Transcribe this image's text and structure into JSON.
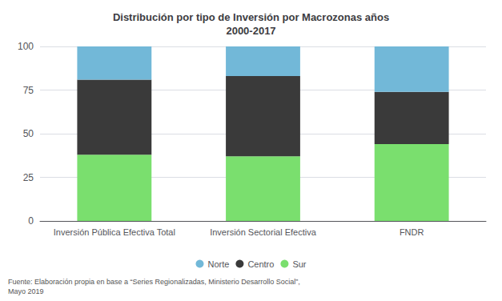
{
  "chart_data": {
    "type": "bar",
    "stacked": true,
    "title": "Distribución por tipo de Inversión por Macrozonas años\n2000-2017",
    "categories": [
      "Inversión Pública Efectiva Total",
      "Inversión Sectorial Efectiva",
      "FNDR"
    ],
    "series": [
      {
        "name": "Sur",
        "color": "#7adf6e",
        "values": [
          38,
          37,
          44
        ]
      },
      {
        "name": "Centro",
        "color": "#3a3a3a",
        "values": [
          43,
          46,
          30
        ]
      },
      {
        "name": "Norte",
        "color": "#72b8d8",
        "values": [
          19,
          17,
          26
        ]
      }
    ],
    "ylim": [
      0,
      100
    ],
    "yticks": [
      0,
      25,
      50,
      75,
      100
    ],
    "grid": true,
    "legend": "bottom",
    "footnote": "Fuente: Elaboración propia en base a “Series Regionalizadas, Ministerio Desarrollo Social”,\nMayo 2019"
  }
}
